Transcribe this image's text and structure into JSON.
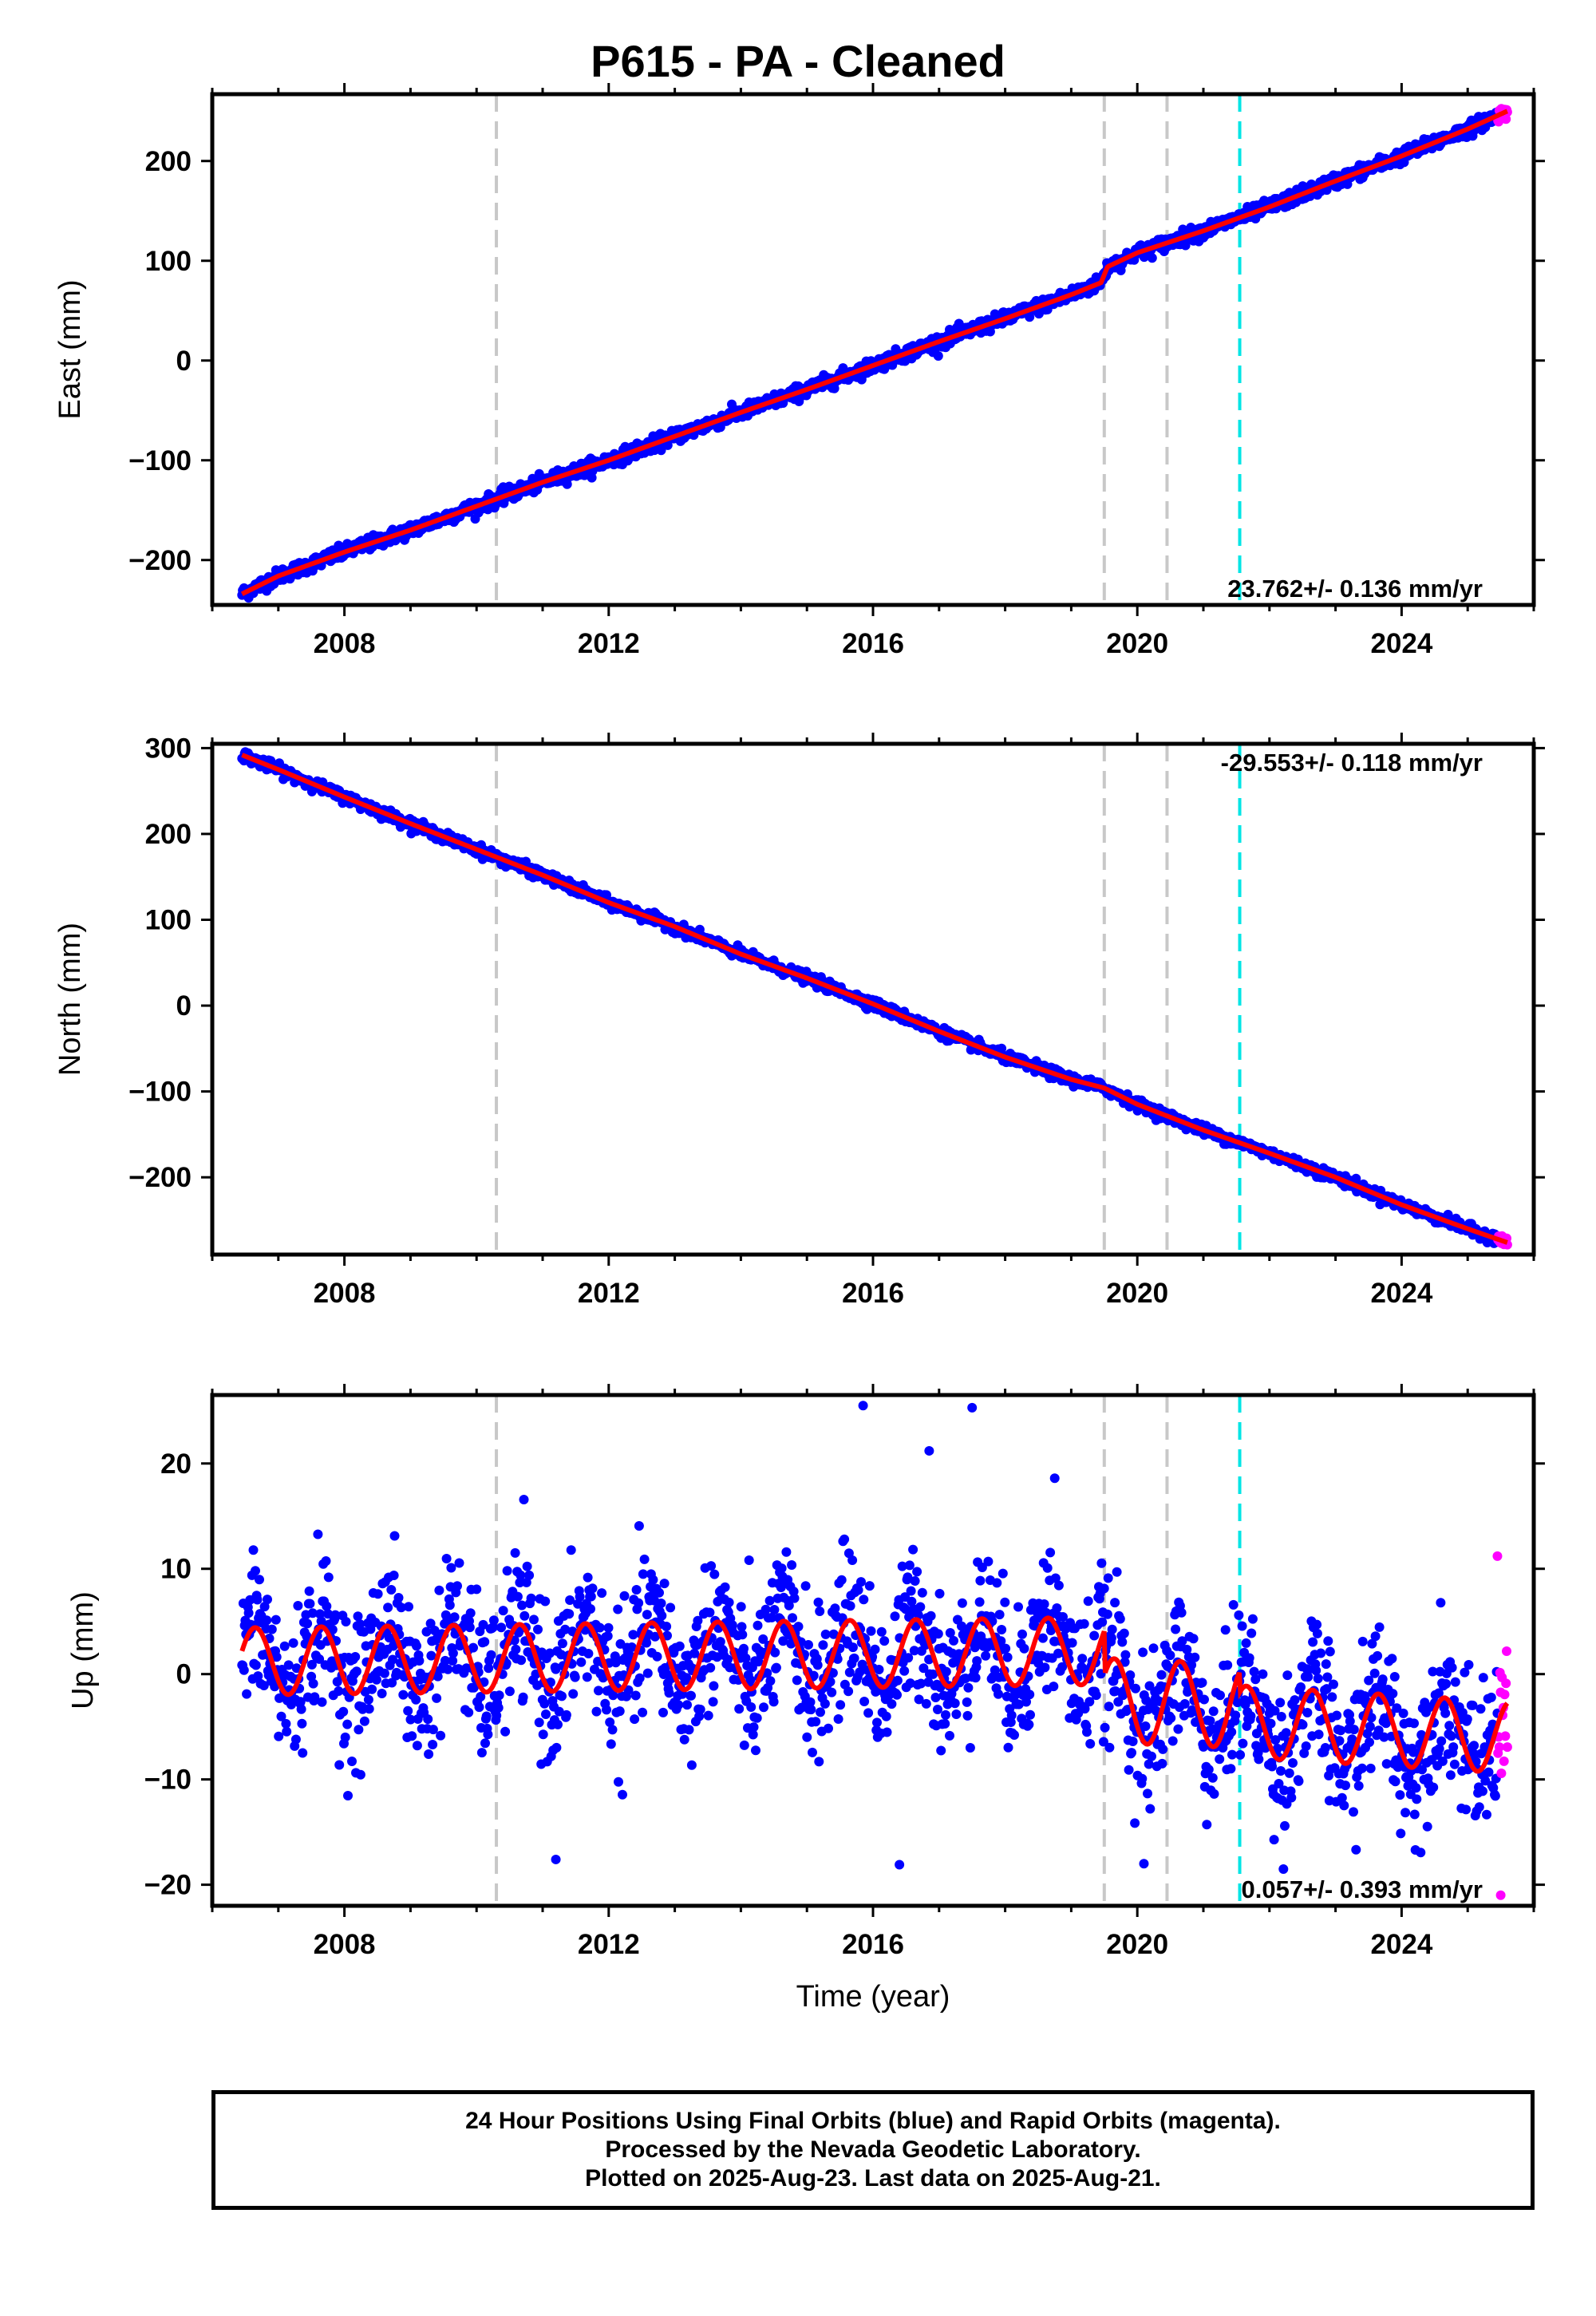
{
  "title": "P615  - PA - Cleaned",
  "colors": {
    "final_orbits": "#0000ff",
    "rapid_orbits": "#ff00ff",
    "model": "#ff0000",
    "equipment_change": "#c8c8c8",
    "earthquake": "#00e5e5"
  },
  "footer": {
    "line1": "24 Hour Positions Using Final Orbits (blue) and Rapid Orbits (magenta).",
    "line2": "Processed by the Nevada Geodetic Laboratory.",
    "line3": "Plotted on 2025-Aug-23. Last data on 2025-Aug-21."
  },
  "chart_data": [
    {
      "type": "scatter",
      "component": "east",
      "ylabel": "East (mm)",
      "xlim": [
        2006.0,
        2026.0
      ],
      "ylim": [
        -245,
        267
      ],
      "xticks": [
        2008,
        2012,
        2016,
        2020,
        2024
      ],
      "yticks": [
        -200,
        -100,
        0,
        100,
        200
      ],
      "tick_labels_y": [
        "−200",
        "−100",
        "0",
        "100",
        "200"
      ],
      "rate_text": "23.762+/- 0.136 mm/yr",
      "rate_position": "bottom-right",
      "vlines_gray": [
        2010.3,
        2019.5,
        2020.45
      ],
      "vlines_cyan": [
        2021.55
      ],
      "start_year": 2006.45,
      "end_year": 2025.6,
      "rapid_start": 2025.45,
      "model_points": [
        [
          2006.45,
          -234
        ],
        [
          2007.0,
          -216
        ],
        [
          2008.0,
          -192
        ],
        [
          2009.0,
          -170
        ],
        [
          2010.0,
          -146
        ],
        [
          2011.0,
          -122
        ],
        [
          2012.0,
          -100
        ],
        [
          2013.0,
          -76
        ],
        [
          2014.0,
          -52
        ],
        [
          2015.0,
          -29
        ],
        [
          2016.0,
          -5
        ],
        [
          2017.0,
          19
        ],
        [
          2018.0,
          42
        ],
        [
          2019.0,
          66
        ],
        [
          2019.45,
          78
        ],
        [
          2019.55,
          94
        ],
        [
          2020.0,
          108
        ],
        [
          2021.0,
          130
        ],
        [
          2022.0,
          154
        ],
        [
          2023.0,
          180
        ],
        [
          2024.0,
          205
        ],
        [
          2025.0,
          232
        ],
        [
          2025.6,
          250
        ]
      ],
      "noise_mm": 3.5,
      "outliers": []
    },
    {
      "type": "scatter",
      "component": "north",
      "ylabel": "North (mm)",
      "xlim": [
        2006.0,
        2026.0
      ],
      "ylim": [
        -290,
        305
      ],
      "xticks": [
        2008,
        2012,
        2016,
        2020,
        2024
      ],
      "yticks": [
        -200,
        -100,
        0,
        100,
        200,
        300
      ],
      "tick_labels_y": [
        "−200",
        "−100",
        "0",
        "100",
        "200",
        "300"
      ],
      "rate_text": "-29.553+/- 0.118 mm/yr",
      "rate_position": "top-right",
      "vlines_gray": [
        2010.3,
        2019.5,
        2020.45
      ],
      "vlines_cyan": [
        2021.55
      ],
      "start_year": 2006.45,
      "end_year": 2025.6,
      "rapid_start": 2025.45,
      "model_points": [
        [
          2006.45,
          292
        ],
        [
          2007.0,
          275
        ],
        [
          2008.0,
          243
        ],
        [
          2009.0,
          212
        ],
        [
          2010.0,
          182
        ],
        [
          2011.0,
          152
        ],
        [
          2012.0,
          120
        ],
        [
          2013.0,
          92
        ],
        [
          2014.0,
          60
        ],
        [
          2015.0,
          32
        ],
        [
          2016.0,
          2
        ],
        [
          2017.0,
          -30
        ],
        [
          2018.0,
          -60
        ],
        [
          2019.0,
          -86
        ],
        [
          2019.5,
          -96
        ],
        [
          2020.0,
          -115
        ],
        [
          2021.0,
          -145
        ],
        [
          2022.0,
          -172
        ],
        [
          2023.0,
          -200
        ],
        [
          2024.0,
          -232
        ],
        [
          2025.0,
          -260
        ],
        [
          2025.6,
          -276
        ]
      ],
      "noise_mm": 3.0,
      "outliers": []
    },
    {
      "type": "scatter",
      "component": "up",
      "ylabel": "Up (mm)",
      "xlabel": "Time (year)",
      "xlim": [
        2006.0,
        2026.0
      ],
      "ylim": [
        -22,
        26.5
      ],
      "xticks": [
        2008,
        2012,
        2016,
        2020,
        2024
      ],
      "yticks": [
        -20,
        -10,
        0,
        10,
        20
      ],
      "tick_labels_y": [
        "−20",
        "−10",
        "0",
        "10",
        "20"
      ],
      "rate_text": "0.057+/- 0.393 mm/yr",
      "rate_position": "bottom-right",
      "vlines_gray": [
        2010.3,
        2019.5,
        2020.45
      ],
      "vlines_cyan": [
        2021.55
      ],
      "start_year": 2006.45,
      "end_year": 2025.6,
      "rapid_start": 2025.45,
      "seasonal": {
        "segments": [
          {
            "start": 2006.45,
            "end": 2019.5,
            "offset_start": 1.2,
            "offset_end": 2.2,
            "amplitude": 3.2
          },
          {
            "start": 2019.5,
            "end": 2021.55,
            "offset_start": -2.5,
            "offset_end": -3.0,
            "amplitude": 4.0
          },
          {
            "start": 2021.55,
            "end": 2025.6,
            "offset_start": -4.5,
            "offset_end": -6.0,
            "amplitude": 3.4
          }
        ]
      },
      "noise_mm": 3.4,
      "outliers": [
        [
          2015.85,
          25.5
        ],
        [
          2017.5,
          25.3
        ],
        [
          2016.85,
          21.2
        ],
        [
          2018.75,
          18.6
        ],
        [
          2011.2,
          -17.6
        ],
        [
          2016.4,
          -18.1
        ],
        [
          2020.1,
          -18.0
        ],
        [
          2025.45,
          11.2
        ],
        [
          2025.5,
          -21.0
        ]
      ]
    }
  ]
}
